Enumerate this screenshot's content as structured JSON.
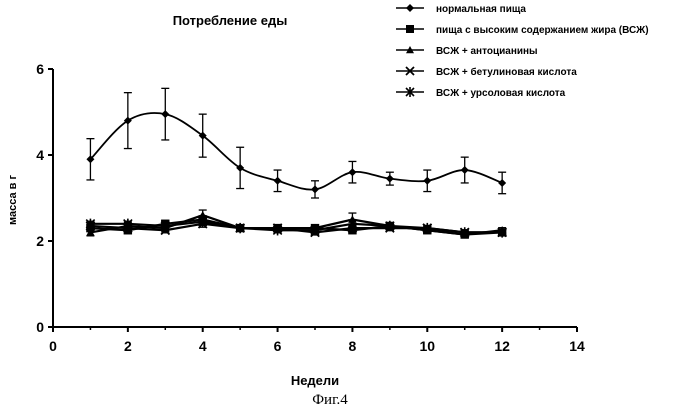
{
  "chart_data": {
    "type": "line",
    "title": "Потребление еды",
    "xlabel": "Недели",
    "ylabel": "масса в г",
    "xlim": [
      0,
      14
    ],
    "ylim": [
      0,
      6
    ],
    "x_ticks": [
      "0",
      "2",
      "4",
      "6",
      "8",
      "10",
      "12",
      "14"
    ],
    "y_ticks": [
      "0",
      "2",
      "4",
      "6"
    ],
    "grid": false,
    "legend_position": "top-right",
    "x": [
      1,
      2,
      3,
      4,
      5,
      6,
      7,
      8,
      9,
      10,
      11,
      12
    ],
    "series": [
      {
        "name": "нормальная пища",
        "marker": "diamond",
        "values": [
          3.9,
          4.8,
          4.95,
          4.45,
          3.7,
          3.4,
          3.2,
          3.6,
          3.45,
          3.4,
          3.65,
          3.35
        ],
        "errors": [
          0.48,
          0.65,
          0.6,
          0.5,
          0.48,
          0.25,
          0.2,
          0.25,
          0.15,
          0.25,
          0.3,
          0.25
        ]
      },
      {
        "name": "пища с высоким содержанием жира (ВСЖ)",
        "marker": "square",
        "values": [
          2.3,
          2.25,
          2.4,
          2.5,
          2.3,
          2.3,
          2.3,
          2.25,
          2.35,
          2.25,
          2.15,
          2.2
        ],
        "errors": [
          0.08,
          0.08,
          0.08,
          0.08,
          0.06,
          0.06,
          0.06,
          0.06,
          0.06,
          0.06,
          0.06,
          0.06
        ]
      },
      {
        "name": "ВСЖ + антоцианины",
        "marker": "triangle",
        "values": [
          2.2,
          2.35,
          2.3,
          2.6,
          2.3,
          2.3,
          2.3,
          2.5,
          2.35,
          2.25,
          2.15,
          2.25
        ],
        "errors": [
          0.08,
          0.08,
          0.08,
          0.12,
          0.06,
          0.06,
          0.06,
          0.15,
          0.06,
          0.06,
          0.06,
          0.06
        ]
      },
      {
        "name": "ВСЖ + бетулиновая кислота",
        "marker": "x",
        "values": [
          2.35,
          2.3,
          2.25,
          2.4,
          2.3,
          2.3,
          2.2,
          2.3,
          2.3,
          2.3,
          2.2,
          2.2
        ],
        "errors": [
          0.06,
          0.06,
          0.06,
          0.08,
          0.06,
          0.06,
          0.06,
          0.06,
          0.06,
          0.06,
          0.06,
          0.06
        ]
      },
      {
        "name": "ВСЖ + урсоловая кислота",
        "marker": "asterisk",
        "values": [
          2.4,
          2.4,
          2.35,
          2.45,
          2.3,
          2.25,
          2.25,
          2.4,
          2.35,
          2.3,
          2.2,
          2.2
        ],
        "errors": [
          0.06,
          0.06,
          0.06,
          0.08,
          0.06,
          0.06,
          0.06,
          0.08,
          0.06,
          0.06,
          0.06,
          0.06
        ]
      }
    ],
    "caption": "Фиг.4"
  }
}
